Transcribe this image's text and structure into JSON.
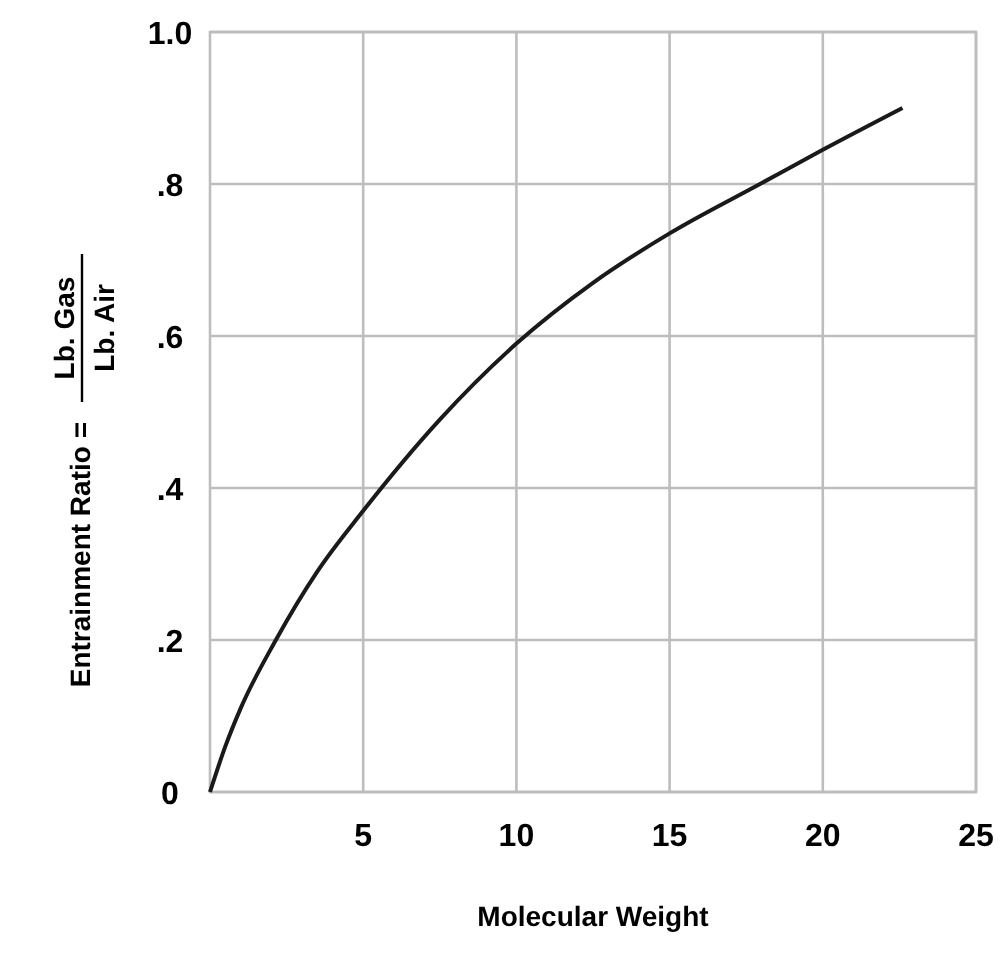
{
  "chart_data": {
    "type": "line",
    "xlabel": "Molecular Weight",
    "ylabel": "Entrainment Ratio = Lb. Gas\nLb. Air",
    "xlim": [
      0,
      25
    ],
    "ylim": [
      0,
      1
    ],
    "xticks": [
      5,
      10,
      15,
      20,
      25
    ],
    "yticks": [
      0,
      {
        "value": 0.2,
        "label": ".2"
      },
      {
        "value": 0.4,
        "label": ".4"
      },
      {
        "value": 0.6,
        "label": ".6"
      },
      {
        "value": 0.8,
        "label": ".8"
      },
      {
        "value": 1,
        "label": "1.0"
      }
    ],
    "grid": true,
    "marker": "none",
    "line_style": "solid",
    "series": [
      {
        "color": "#1a1a1a",
        "x": [
          0,
          0.5,
          1,
          2.15,
          3.5,
          5,
          7.5,
          10,
          12.5,
          15,
          17.95,
          20,
          22.6
        ],
        "values": [
          0,
          0.06,
          0.11,
          0.2,
          0.29,
          0.37,
          0.49,
          0.59,
          0.67,
          0.735,
          0.8,
          0.845,
          0.9
        ]
      }
    ]
  }
}
